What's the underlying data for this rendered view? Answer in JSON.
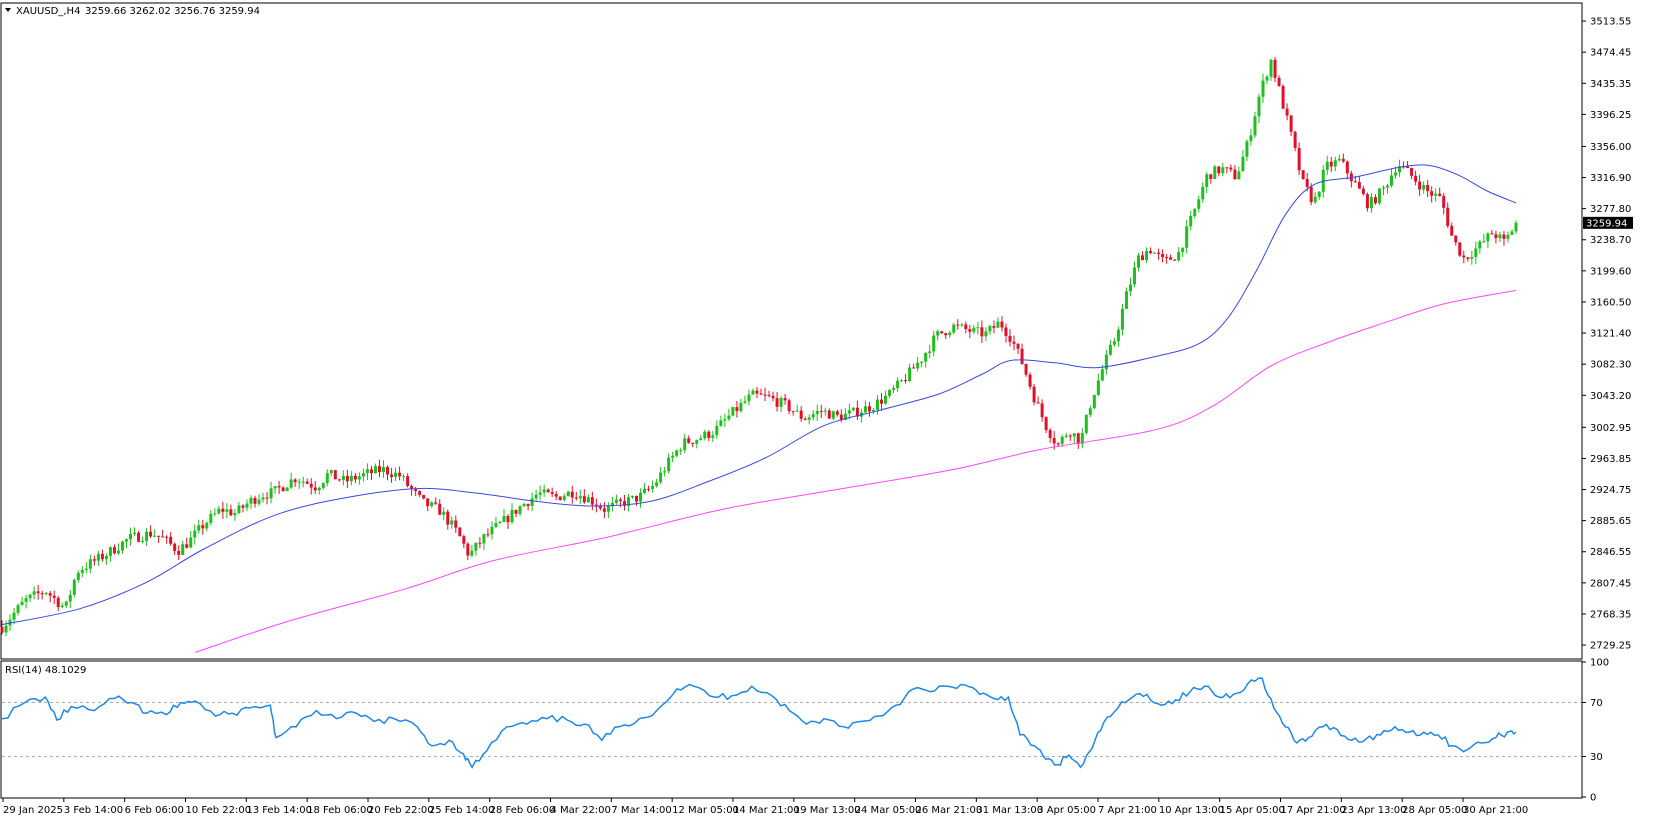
{
  "header": {
    "symbol": "XAUUSD_,H4",
    "ohlc": "3259.66 3262.02 3256.76 3259.94"
  },
  "rsi_panel": {
    "label": "RSI(14) 48.1029"
  },
  "colors": {
    "bull": "#1fbf1f",
    "bear": "#e0102a",
    "ma_fast": "#3b47e6",
    "ma_slow": "#ff46ff",
    "rsi": "#1e88e5",
    "price_tag_bg": "#000000"
  },
  "chart_data": [
    {
      "type": "candlestick",
      "title": "XAUUSD_,H4",
      "ylim": [
        2713,
        3535
      ],
      "y_ticks": [
        "3513.55",
        "3474.45",
        "3435.35",
        "3396.25",
        "3356.00",
        "3316.90",
        "3277.80",
        "3238.70",
        "3199.60",
        "3160.50",
        "3121.40",
        "3082.30",
        "3043.20",
        "3002.95",
        "2963.85",
        "2924.75",
        "2885.65",
        "2846.55",
        "2807.45",
        "2768.35",
        "2729.25"
      ],
      "last_price": "3259.94",
      "x_ticks": [
        "29 Jan 2025",
        "3 Feb 14:00",
        "6 Feb 06:00",
        "10 Feb 22:00",
        "13 Feb 14:00",
        "18 Feb 06:00",
        "20 Feb 22:00",
        "25 Feb 14:00",
        "28 Feb 06:00",
        "4 Mar 22:00",
        "7 Mar 14:00",
        "12 Mar 05:00",
        "14 Mar 21:00",
        "19 Mar 13:00",
        "24 Mar 05:00",
        "26 Mar 21:00",
        "31 Mar 13:00",
        "3 Apr 05:00",
        "7 Apr 21:00",
        "10 Apr 13:00",
        "15 Apr 05:00",
        "17 Apr 21:00",
        "23 Apr 13:00",
        "28 Apr 05:00",
        "30 Apr 21:00"
      ],
      "close_path": [
        {
          "x": 0,
          "y": 2752
        },
        {
          "x": 0.8,
          "y": 2785
        },
        {
          "x": 1.5,
          "y": 2798
        },
        {
          "x": 2.2,
          "y": 2775
        },
        {
          "x": 2.6,
          "y": 2822
        },
        {
          "x": 3.2,
          "y": 2835
        },
        {
          "x": 3.6,
          "y": 2843
        },
        {
          "x": 4.4,
          "y": 2863
        },
        {
          "x": 5.2,
          "y": 2870
        },
        {
          "x": 5.6,
          "y": 2863
        },
        {
          "x": 6.1,
          "y": 2848
        },
        {
          "x": 6.5,
          "y": 2860
        },
        {
          "x": 7.0,
          "y": 2881
        },
        {
          "x": 7.6,
          "y": 2900
        },
        {
          "x": 8.1,
          "y": 2895
        },
        {
          "x": 8.6,
          "y": 2910
        },
        {
          "x": 9.0,
          "y": 2918
        },
        {
          "x": 9.4,
          "y": 2921
        },
        {
          "x": 10.2,
          "y": 2940
        },
        {
          "x": 10.9,
          "y": 2928
        },
        {
          "x": 11.3,
          "y": 2944
        },
        {
          "x": 11.9,
          "y": 2935
        },
        {
          "x": 12.6,
          "y": 2944
        },
        {
          "x": 13.2,
          "y": 2950
        },
        {
          "x": 13.8,
          "y": 2942
        },
        {
          "x": 14.2,
          "y": 2924
        },
        {
          "x": 14.6,
          "y": 2908
        },
        {
          "x": 15.2,
          "y": 2898
        },
        {
          "x": 15.8,
          "y": 2870
        },
        {
          "x": 16.2,
          "y": 2842
        },
        {
          "x": 16.7,
          "y": 2864
        },
        {
          "x": 17.4,
          "y": 2885
        },
        {
          "x": 18.0,
          "y": 2904
        },
        {
          "x": 18.6,
          "y": 2920
        },
        {
          "x": 19.2,
          "y": 2915
        },
        {
          "x": 19.8,
          "y": 2922
        },
        {
          "x": 20.4,
          "y": 2912
        },
        {
          "x": 20.9,
          "y": 2900
        },
        {
          "x": 21.5,
          "y": 2908
        },
        {
          "x": 22.1,
          "y": 2915
        },
        {
          "x": 22.6,
          "y": 2930
        },
        {
          "x": 23.1,
          "y": 2958
        },
        {
          "x": 23.6,
          "y": 2983
        },
        {
          "x": 24.2,
          "y": 2990
        },
        {
          "x": 24.7,
          "y": 2998
        },
        {
          "x": 25.3,
          "y": 3020
        },
        {
          "x": 26.0,
          "y": 3043
        },
        {
          "x": 26.6,
          "y": 3040
        },
        {
          "x": 27.2,
          "y": 3030
        },
        {
          "x": 27.8,
          "y": 3014
        },
        {
          "x": 28.4,
          "y": 3024
        },
        {
          "x": 29.0,
          "y": 3016
        },
        {
          "x": 29.6,
          "y": 3022
        },
        {
          "x": 30.2,
          "y": 3030
        },
        {
          "x": 30.8,
          "y": 3045
        },
        {
          "x": 31.4,
          "y": 3068
        },
        {
          "x": 31.9,
          "y": 3090
        },
        {
          "x": 32.4,
          "y": 3118
        },
        {
          "x": 33.0,
          "y": 3130
        },
        {
          "x": 33.6,
          "y": 3124
        },
        {
          "x": 34.1,
          "y": 3120
        },
        {
          "x": 34.6,
          "y": 3135
        },
        {
          "x": 35.0,
          "y": 3115
        },
        {
          "x": 35.4,
          "y": 3082
        },
        {
          "x": 35.8,
          "y": 3040
        },
        {
          "x": 36.2,
          "y": 3005
        },
        {
          "x": 36.6,
          "y": 2980
        },
        {
          "x": 37.0,
          "y": 3000
        },
        {
          "x": 37.4,
          "y": 2985
        },
        {
          "x": 37.8,
          "y": 3040
        },
        {
          "x": 38.2,
          "y": 3080
        },
        {
          "x": 38.6,
          "y": 3115
        },
        {
          "x": 39.0,
          "y": 3170
        },
        {
          "x": 39.4,
          "y": 3215
        },
        {
          "x": 39.8,
          "y": 3228
        },
        {
          "x": 40.3,
          "y": 3210
        },
        {
          "x": 40.8,
          "y": 3222
        },
        {
          "x": 41.3,
          "y": 3270
        },
        {
          "x": 41.8,
          "y": 3320
        },
        {
          "x": 42.3,
          "y": 3328
        },
        {
          "x": 42.8,
          "y": 3318
        },
        {
          "x": 43.2,
          "y": 3360
        },
        {
          "x": 43.6,
          "y": 3420
        },
        {
          "x": 44.0,
          "y": 3465
        },
        {
          "x": 44.3,
          "y": 3425
        },
        {
          "x": 44.7,
          "y": 3370
        },
        {
          "x": 45.1,
          "y": 3310
        },
        {
          "x": 45.5,
          "y": 3285
        },
        {
          "x": 45.9,
          "y": 3330
        },
        {
          "x": 46.4,
          "y": 3338
        },
        {
          "x": 46.9,
          "y": 3310
        },
        {
          "x": 47.4,
          "y": 3282
        },
        {
          "x": 47.9,
          "y": 3302
        },
        {
          "x": 48.4,
          "y": 3335
        },
        {
          "x": 48.9,
          "y": 3318
        },
        {
          "x": 49.4,
          "y": 3300
        },
        {
          "x": 49.9,
          "y": 3290
        },
        {
          "x": 50.3,
          "y": 3240
        },
        {
          "x": 50.7,
          "y": 3215
        },
        {
          "x": 51.2,
          "y": 3230
        },
        {
          "x": 51.7,
          "y": 3248
        },
        {
          "x": 52.1,
          "y": 3235
        },
        {
          "x": 52.5,
          "y": 3260
        }
      ],
      "ma_fast": [
        {
          "x": 0,
          "y": 2755
        },
        {
          "x": 2.7,
          "y": 2775
        },
        {
          "x": 5,
          "y": 2808
        },
        {
          "x": 7,
          "y": 2850
        },
        {
          "x": 9.5,
          "y": 2893
        },
        {
          "x": 12,
          "y": 2915
        },
        {
          "x": 14.5,
          "y": 2926
        },
        {
          "x": 16.5,
          "y": 2920
        },
        {
          "x": 18.5,
          "y": 2910
        },
        {
          "x": 20.5,
          "y": 2904
        },
        {
          "x": 22.5,
          "y": 2910
        },
        {
          "x": 24.5,
          "y": 2935
        },
        {
          "x": 26.5,
          "y": 2965
        },
        {
          "x": 28.5,
          "y": 3005
        },
        {
          "x": 30.5,
          "y": 3025
        },
        {
          "x": 32.5,
          "y": 3045
        },
        {
          "x": 34,
          "y": 3070
        },
        {
          "x": 35,
          "y": 3087
        },
        {
          "x": 36.5,
          "y": 3084
        },
        {
          "x": 38,
          "y": 3078
        },
        {
          "x": 40,
          "y": 3092
        },
        {
          "x": 41.5,
          "y": 3108
        },
        {
          "x": 42.5,
          "y": 3140
        },
        {
          "x": 43.5,
          "y": 3200
        },
        {
          "x": 44.5,
          "y": 3270
        },
        {
          "x": 45.5,
          "y": 3308
        },
        {
          "x": 47,
          "y": 3318
        },
        {
          "x": 48.5,
          "y": 3330
        },
        {
          "x": 49.5,
          "y": 3332
        },
        {
          "x": 50.5,
          "y": 3320
        },
        {
          "x": 51.5,
          "y": 3300
        },
        {
          "x": 52.5,
          "y": 3285
        }
      ],
      "ma_slow": [
        {
          "x": 6.7,
          "y": 2720
        },
        {
          "x": 10,
          "y": 2760
        },
        {
          "x": 14,
          "y": 2800
        },
        {
          "x": 17,
          "y": 2835
        },
        {
          "x": 21,
          "y": 2865
        },
        {
          "x": 25,
          "y": 2900
        },
        {
          "x": 29,
          "y": 2925
        },
        {
          "x": 33,
          "y": 2950
        },
        {
          "x": 36,
          "y": 2975
        },
        {
          "x": 40,
          "y": 3000
        },
        {
          "x": 42,
          "y": 3030
        },
        {
          "x": 44,
          "y": 3080
        },
        {
          "x": 46,
          "y": 3110
        },
        {
          "x": 48,
          "y": 3135
        },
        {
          "x": 50,
          "y": 3158
        },
        {
          "x": 52.5,
          "y": 3175
        }
      ]
    },
    {
      "type": "line",
      "title": "RSI(14) 48.1029",
      "ylim": [
        0,
        100
      ],
      "y_ticks": [
        "100",
        "70",
        "30",
        "0"
      ],
      "reference_levels": [
        70,
        30
      ],
      "series": [
        {
          "name": "RSI(14)",
          "points": [
            {
              "x": 0,
              "y": 58
            },
            {
              "x": 0.8,
              "y": 70
            },
            {
              "x": 1.5,
              "y": 74
            },
            {
              "x": 1.9,
              "y": 57
            },
            {
              "x": 2.4,
              "y": 67
            },
            {
              "x": 3.2,
              "y": 64
            },
            {
              "x": 3.9,
              "y": 73
            },
            {
              "x": 4.5,
              "y": 70
            },
            {
              "x": 5.0,
              "y": 62
            },
            {
              "x": 5.7,
              "y": 61
            },
            {
              "x": 6.2,
              "y": 70
            },
            {
              "x": 6.7,
              "y": 71
            },
            {
              "x": 7.4,
              "y": 60
            },
            {
              "x": 8.0,
              "y": 62
            },
            {
              "x": 8.6,
              "y": 66
            },
            {
              "x": 9.3,
              "y": 68
            },
            {
              "x": 9.5,
              "y": 44
            },
            {
              "x": 10.2,
              "y": 52
            },
            {
              "x": 10.9,
              "y": 64
            },
            {
              "x": 11.6,
              "y": 58
            },
            {
              "x": 12.3,
              "y": 62
            },
            {
              "x": 12.9,
              "y": 56
            },
            {
              "x": 13.6,
              "y": 58
            },
            {
              "x": 14.4,
              "y": 52
            },
            {
              "x": 14.9,
              "y": 38
            },
            {
              "x": 15.5,
              "y": 42
            },
            {
              "x": 16.0,
              "y": 32
            },
            {
              "x": 16.3,
              "y": 22
            },
            {
              "x": 16.8,
              "y": 34
            },
            {
              "x": 17.5,
              "y": 52
            },
            {
              "x": 18.2,
              "y": 54
            },
            {
              "x": 18.9,
              "y": 58
            },
            {
              "x": 19.6,
              "y": 57
            },
            {
              "x": 20.2,
              "y": 54
            },
            {
              "x": 20.8,
              "y": 42
            },
            {
              "x": 21.4,
              "y": 52
            },
            {
              "x": 22.1,
              "y": 58
            },
            {
              "x": 22.7,
              "y": 64
            },
            {
              "x": 23.4,
              "y": 80
            },
            {
              "x": 24.0,
              "y": 82
            },
            {
              "x": 24.7,
              "y": 74
            },
            {
              "x": 25.3,
              "y": 75
            },
            {
              "x": 26.0,
              "y": 82
            },
            {
              "x": 26.7,
              "y": 75
            },
            {
              "x": 27.3,
              "y": 64
            },
            {
              "x": 27.9,
              "y": 54
            },
            {
              "x": 28.5,
              "y": 58
            },
            {
              "x": 29.2,
              "y": 52
            },
            {
              "x": 29.8,
              "y": 56
            },
            {
              "x": 30.4,
              "y": 60
            },
            {
              "x": 31.0,
              "y": 68
            },
            {
              "x": 31.6,
              "y": 80
            },
            {
              "x": 32.2,
              "y": 78
            },
            {
              "x": 32.8,
              "y": 82
            },
            {
              "x": 33.4,
              "y": 83
            },
            {
              "x": 33.9,
              "y": 76
            },
            {
              "x": 34.4,
              "y": 73
            },
            {
              "x": 34.9,
              "y": 74
            },
            {
              "x": 35.3,
              "y": 46
            },
            {
              "x": 35.8,
              "y": 38
            },
            {
              "x": 36.2,
              "y": 28
            },
            {
              "x": 36.6,
              "y": 24
            },
            {
              "x": 37.0,
              "y": 31
            },
            {
              "x": 37.4,
              "y": 22
            },
            {
              "x": 37.8,
              "y": 36
            },
            {
              "x": 38.2,
              "y": 55
            },
            {
              "x": 38.7,
              "y": 66
            },
            {
              "x": 39.2,
              "y": 74
            },
            {
              "x": 39.7,
              "y": 76
            },
            {
              "x": 40.2,
              "y": 68
            },
            {
              "x": 40.7,
              "y": 72
            },
            {
              "x": 41.2,
              "y": 78
            },
            {
              "x": 41.7,
              "y": 82
            },
            {
              "x": 42.2,
              "y": 74
            },
            {
              "x": 42.7,
              "y": 76
            },
            {
              "x": 43.2,
              "y": 84
            },
            {
              "x": 43.7,
              "y": 88
            },
            {
              "x": 44.1,
              "y": 66
            },
            {
              "x": 44.5,
              "y": 52
            },
            {
              "x": 44.9,
              "y": 40
            },
            {
              "x": 45.3,
              "y": 44
            },
            {
              "x": 45.8,
              "y": 52
            },
            {
              "x": 46.3,
              "y": 50
            },
            {
              "x": 46.8,
              "y": 42
            },
            {
              "x": 47.3,
              "y": 43
            },
            {
              "x": 47.8,
              "y": 46
            },
            {
              "x": 48.3,
              "y": 52
            },
            {
              "x": 48.8,
              "y": 48
            },
            {
              "x": 49.3,
              "y": 48
            },
            {
              "x": 49.8,
              "y": 46
            },
            {
              "x": 50.3,
              "y": 38
            },
            {
              "x": 50.8,
              "y": 35
            },
            {
              "x": 51.3,
              "y": 40
            },
            {
              "x": 51.8,
              "y": 44
            },
            {
              "x": 52.2,
              "y": 48
            },
            {
              "x": 52.5,
              "y": 48
            }
          ]
        }
      ]
    }
  ]
}
